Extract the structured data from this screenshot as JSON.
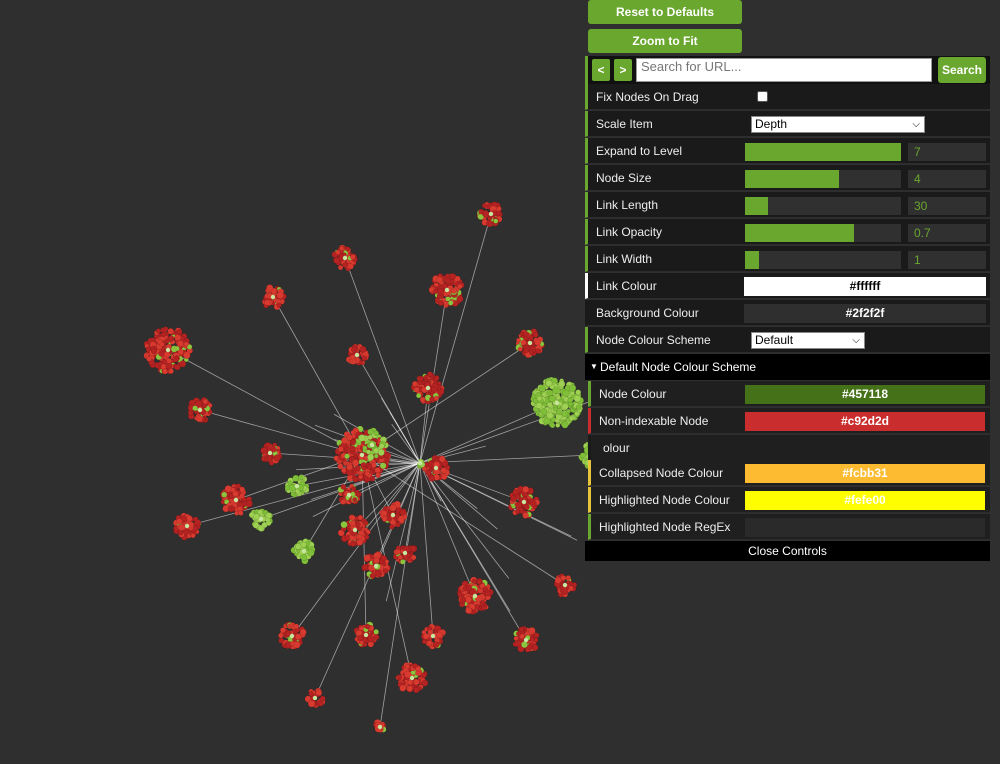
{
  "controls": {
    "reset_label": "Reset to Defaults",
    "zoom_label": "Zoom to Fit",
    "prev_label": "<",
    "next_label": ">",
    "search_placeholder": "Search for URL...",
    "search_label": "Search",
    "fix_nodes_label": "Fix Nodes On Drag",
    "fix_nodes_checked": false,
    "scale_item_label": "Scale Item",
    "scale_item_value": "Depth",
    "expand_label": "Expand to Level",
    "expand_value": "7",
    "expand_fraction": 1.0,
    "node_size_label": "Node Size",
    "node_size_value": "4",
    "node_size_fraction": 0.6,
    "link_length_label": "Link Length",
    "link_length_value": "30",
    "link_length_fraction": 0.15,
    "link_opacity_label": "Link Opacity",
    "link_opacity_value": "0.7",
    "link_opacity_fraction": 0.7,
    "link_width_label": "Link Width",
    "link_width_value": "1",
    "link_width_fraction": 0.09,
    "link_colour_label": "Link Colour",
    "link_colour_value": "#ffffff",
    "bg_colour_label": "Background Colour",
    "bg_colour_value": "#2f2f2f",
    "scheme_label": "Node Colour Scheme",
    "scheme_value": "Default",
    "section_label": "Default Node Colour Scheme",
    "node_colour_label": "Node Colour",
    "node_colour_value": "#457118",
    "nonindex_label": "Non-indexable Node",
    "nonindex_value": "#c92d2d",
    "partial_label": "olour",
    "collapsed_label": "Collapsed Node Colour",
    "collapsed_value": "#fcbb31",
    "highlighted_label": "Highlighted Node Colour",
    "highlighted_value": "#fefe00",
    "regex_label": "Highlighted Node RegEx",
    "regex_value": "",
    "close_label": "Close Controls"
  },
  "colors": {
    "accent": "#6aa72f",
    "background": "#2f2f2f",
    "node_red": "#c92d2d",
    "node_green": "#8cc63f",
    "link": "#ffffff"
  },
  "icons": {
    "section_toggle": "triangle-down-icon"
  }
}
